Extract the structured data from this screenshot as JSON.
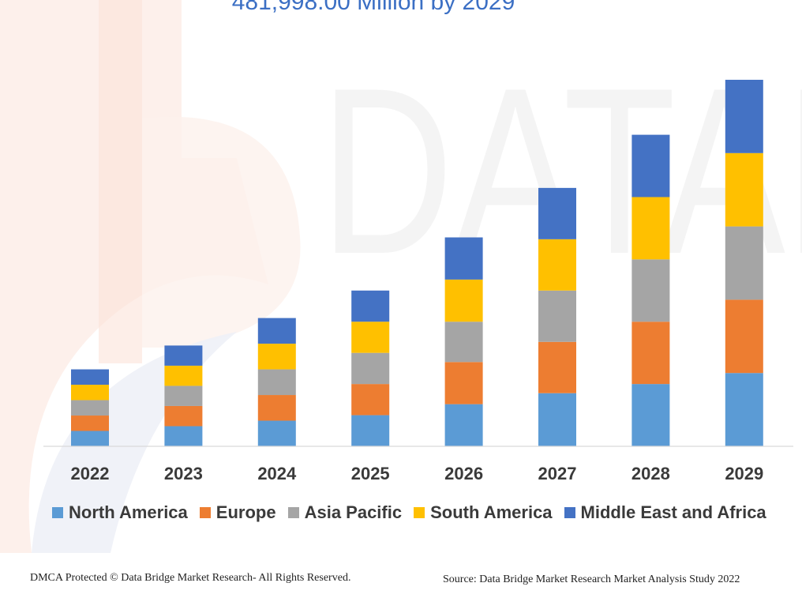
{
  "title": "481,998.00 Million by 2029",
  "footer": {
    "copyright": "DMCA Protected © Data Bridge Market Research- All Rights Reserved.",
    "source": "Source: Data Bridge Market Research Market Analysis Study 2022"
  },
  "chart_data": {
    "type": "bar",
    "stacked": true,
    "title": "481,998.00 Million by 2029",
    "xlabel": "",
    "ylabel": "",
    "ylim": [
      0,
      100
    ],
    "grid": false,
    "legend_position": "bottom",
    "categories": [
      "2022",
      "2023",
      "2024",
      "2025",
      "2026",
      "2027",
      "2028",
      "2029"
    ],
    "series": [
      {
        "name": "North America",
        "color": "#5b9bd5",
        "values": [
          4.2,
          5.5,
          7.0,
          8.5,
          11.5,
          14.5,
          17.0,
          20.0
        ]
      },
      {
        "name": "Europe",
        "color": "#ed7d31",
        "values": [
          4.2,
          5.5,
          7.0,
          8.5,
          11.5,
          14.0,
          17.0,
          20.0
        ]
      },
      {
        "name": "Asia Pacific",
        "color": "#a5a5a5",
        "values": [
          4.2,
          5.5,
          7.0,
          8.5,
          11.0,
          14.0,
          17.0,
          20.0
        ]
      },
      {
        "name": "South America",
        "color": "#ffc000",
        "values": [
          4.2,
          5.5,
          7.0,
          8.5,
          11.5,
          14.0,
          17.0,
          20.0
        ]
      },
      {
        "name": "Middle East and Africa",
        "color": "#4472c4",
        "values": [
          4.2,
          5.5,
          7.0,
          8.5,
          11.5,
          14.0,
          17.0,
          20.0
        ]
      }
    ]
  }
}
